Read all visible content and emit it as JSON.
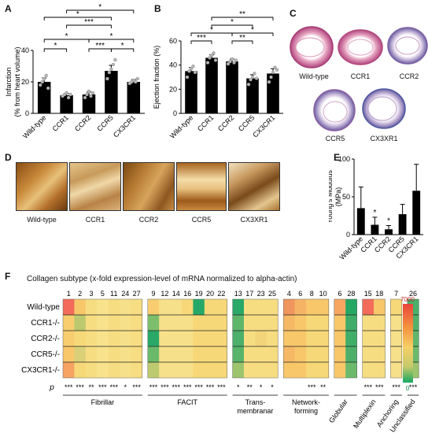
{
  "panels": {
    "A": "A",
    "B": "B",
    "C": "C",
    "D": "D",
    "E": "E",
    "F": "F"
  },
  "colors": {
    "bar": "#000000",
    "heat_high": "#e8453c",
    "heat_mid": "#f5d066",
    "heat_low": "#17a763"
  },
  "chart_data": [
    {
      "id": "A",
      "type": "bar",
      "ylabel": "Infarction",
      "ylabel2": "(% from heart volume)",
      "categories": [
        "Wild-type",
        "CCR1",
        "CCR2",
        "CCR5",
        "CX3CR1"
      ],
      "values": [
        20,
        11.5,
        12,
        27,
        20
      ],
      "errors": [
        2.5,
        1,
        1.5,
        3.5,
        1.5
      ],
      "ylim": [
        0,
        40
      ],
      "yticks": [
        0,
        20,
        40
      ],
      "points": [
        [
          18,
          20,
          22,
          24,
          16
        ],
        [
          11,
          12,
          13,
          10,
          12
        ],
        [
          10,
          12,
          14,
          11,
          13
        ],
        [
          22,
          26,
          28,
          31,
          34
        ],
        [
          19,
          20,
          21,
          20,
          22
        ]
      ],
      "significance": [
        "*",
        "*",
        "***",
        "*",
        "*",
        "***",
        "*",
        "*"
      ]
    },
    {
      "id": "B",
      "type": "bar",
      "ylabel": "Ejection fraction (%)",
      "categories": [
        "Wild-type",
        "CCR1",
        "CCR2",
        "CCR5",
        "CX3CR1"
      ],
      "values": [
        35,
        46,
        43,
        29,
        33
      ],
      "errors": [
        3,
        2.5,
        2,
        3,
        4
      ],
      "ylim": [
        0,
        60
      ],
      "yticks": [
        0,
        20,
        40,
        60
      ],
      "points": [
        [
          30,
          35,
          37,
          39,
          34
        ],
        [
          42,
          46,
          48,
          50,
          44
        ],
        [
          41,
          43,
          45,
          42,
          44
        ],
        [
          24,
          28,
          30,
          33,
          29
        ],
        [
          26,
          30,
          34,
          38,
          36
        ]
      ],
      "significance": [
        "**",
        "***",
        "*",
        "*",
        "**",
        "*"
      ]
    },
    {
      "id": "E",
      "type": "bar",
      "ylabel": "Young's Modulus",
      "ylabel2": "(MPa)",
      "categories": [
        "Wild-type",
        "CCR1",
        "CCR2",
        "CCR5",
        "CX3CR1"
      ],
      "values": [
        35,
        13,
        7,
        27,
        58
      ],
      "errors": [
        28,
        10,
        5,
        13,
        35
      ],
      "ylim": [
        0,
        100
      ],
      "yticks": [
        0,
        50,
        100
      ],
      "stars": [
        "",
        "*",
        "*",
        "",
        ""
      ]
    },
    {
      "id": "F",
      "type": "heatmap",
      "title": "Collagen subtype (x-fold expression-level of mRNA normalized to alpha-actin)",
      "rows": [
        "Wild-type",
        "CCR1-/-",
        "CCR2-/-",
        "CCR5-/-",
        "CX3CR1-/-"
      ],
      "groups": [
        {
          "name": "Fibrillar",
          "columns": [
            "1",
            "2",
            "3",
            "5",
            "11",
            "24",
            "27"
          ],
          "p": [
            "***",
            "***",
            "**",
            "***",
            "***",
            "*",
            "***"
          ]
        },
        {
          "name": "FACIT",
          "columns": [
            "9",
            "12",
            "14",
            "16",
            "19",
            "20",
            "22"
          ],
          "p": [
            "***",
            "***",
            "***",
            "***",
            "***",
            "***",
            "***"
          ]
        },
        {
          "name": "Trans-",
          "name2": "membranar",
          "columns": [
            "13",
            "17",
            "23",
            "25"
          ],
          "p": [
            "*",
            "**",
            "*",
            "*"
          ]
        },
        {
          "name": "Network-",
          "name2": "forming",
          "columns": [
            "4",
            "6",
            "8",
            "10"
          ],
          "p": [
            "",
            "",
            "***",
            "**"
          ]
        },
        {
          "name": "Globular",
          "columns": [
            "6",
            "28"
          ],
          "p": [
            "",
            ""
          ]
        },
        {
          "name": "Multiplexin",
          "columns": [
            "15",
            "18"
          ],
          "p": [
            "***",
            "***"
          ]
        },
        {
          "name": "Anchoring",
          "columns": [
            "7"
          ],
          "p": [
            "***"
          ]
        },
        {
          "name": "Unclassified",
          "columns": [
            "26"
          ],
          "p": [
            "***"
          ]
        }
      ],
      "p_label": "p",
      "colorbar": {
        "max": "7000",
        "min": "0"
      }
    }
  ],
  "hearts": [
    "Wild-type",
    "CCR1",
    "CCR2",
    "CCR5",
    "CX3XR1"
  ],
  "afm": [
    "Wild-type",
    "CCR1",
    "CCR2",
    "CCR5",
    "CX3XR1"
  ]
}
